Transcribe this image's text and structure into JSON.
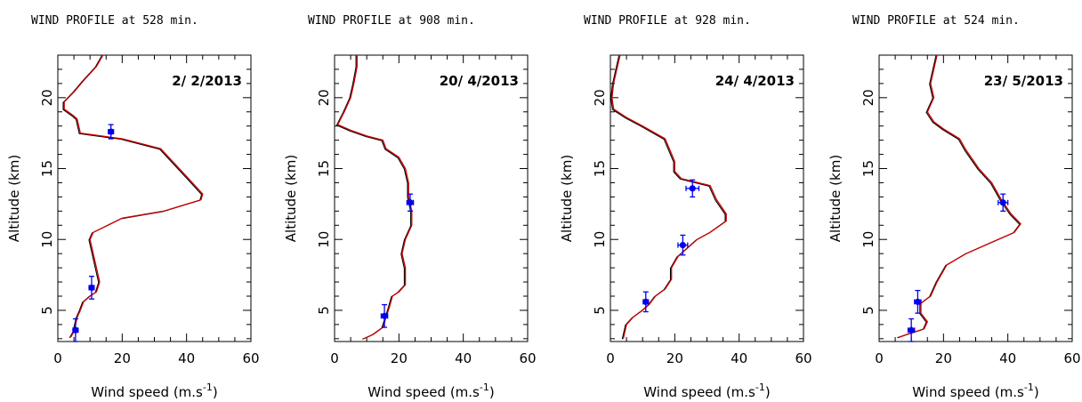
{
  "chart_data": [
    {
      "type": "line",
      "title": "WIND PROFILE at 528  min.",
      "date": "2/ 2/2013",
      "xlabel": "Wind speed (m.s",
      "xlabel_sup": "-1",
      "xlabel_close": ")",
      "ylabel": "Altitude (km)",
      "xlim": [
        0,
        60
      ],
      "ylim": [
        2.8,
        23
      ],
      "xticks": [
        "0",
        "20",
        "40",
        "60"
      ],
      "yticks": [
        "5",
        "10",
        "15",
        "20"
      ],
      "colors": {
        "model": "#cc0000",
        "profile": "#000000",
        "obs": "#0000ee"
      },
      "profile": [
        [
          4,
          3.1
        ],
        [
          5,
          3.5
        ],
        [
          5.5,
          4
        ],
        [
          6,
          4.5
        ],
        [
          7,
          5
        ],
        [
          8,
          5.6
        ],
        [
          10,
          6
        ],
        [
          12,
          6.3
        ],
        [
          13,
          7
        ],
        [
          12,
          8
        ],
        [
          11,
          9
        ],
        [
          10,
          10
        ],
        [
          11,
          10.5
        ],
        [
          20,
          11.5
        ],
        [
          33,
          12
        ],
        [
          44.5,
          12.8
        ],
        [
          45,
          13.2
        ],
        [
          41,
          14.2
        ],
        [
          32,
          16.4
        ],
        [
          20,
          17.1
        ],
        [
          7,
          17.5
        ],
        [
          6,
          18.5
        ],
        [
          5,
          18.7
        ],
        [
          2,
          19.2
        ],
        [
          2,
          19.7
        ],
        [
          5,
          20.4
        ],
        [
          8,
          21.2
        ],
        [
          12,
          22.2
        ],
        [
          14,
          23
        ]
      ],
      "obs": [
        {
          "x": 5.5,
          "y": 3.6,
          "xe": 0.8,
          "ye": 0.8
        },
        {
          "x": 10.5,
          "y": 6.6,
          "xe": 0.8,
          "ye": 0.8
        },
        {
          "x": 16.5,
          "y": 17.6,
          "xe": 0.8,
          "ye": 0.5
        }
      ]
    },
    {
      "type": "line",
      "title": "WIND PROFILE at 908  min.",
      "date": "20/ 4/2013",
      "xlabel": "Wind speed (m.s",
      "xlabel_sup": "-1",
      "xlabel_close": ")",
      "ylabel": "Altitude (km)",
      "xlim": [
        0,
        60
      ],
      "ylim": [
        2.8,
        23
      ],
      "xticks": [
        "0",
        "20",
        "40",
        "60"
      ],
      "yticks": [
        "5",
        "10",
        "15",
        "20"
      ],
      "colors": {
        "model": "#cc0000",
        "profile": "#000000",
        "obs": "#0000ee"
      },
      "profile": [
        [
          9,
          3
        ],
        [
          12,
          3.3
        ],
        [
          15,
          3.8
        ],
        [
          16,
          4.5
        ],
        [
          17,
          5.2
        ],
        [
          18,
          6
        ],
        [
          20,
          6.3
        ],
        [
          22,
          6.8
        ],
        [
          22,
          8
        ],
        [
          21,
          9
        ],
        [
          22,
          10
        ],
        [
          24,
          11
        ],
        [
          24,
          12
        ],
        [
          23,
          13
        ],
        [
          23,
          14
        ],
        [
          22,
          15
        ],
        [
          20,
          15.8
        ],
        [
          16,
          16.4
        ],
        [
          15,
          17
        ],
        [
          10,
          17.3
        ],
        [
          5,
          17.7
        ],
        [
          1,
          18.1
        ],
        [
          3,
          19
        ],
        [
          5,
          20
        ],
        [
          6,
          21
        ],
        [
          7,
          22.2
        ],
        [
          7,
          23
        ]
      ],
      "obs": [
        {
          "x": 15.5,
          "y": 4.6,
          "xe": 1.0,
          "ye": 0.8
        },
        {
          "x": 23.5,
          "y": 12.6,
          "xe": 1.0,
          "ye": 0.6
        }
      ]
    },
    {
      "type": "line",
      "title": "WIND PROFILE at 928  min.",
      "date": "24/ 4/2013",
      "xlabel": "Wind speed (m.s",
      "xlabel_sup": "-1",
      "xlabel_close": ")",
      "ylabel": "Altitude (km)",
      "xlim": [
        0,
        60
      ],
      "ylim": [
        2.8,
        23
      ],
      "xticks": [
        "0",
        "20",
        "40",
        "60"
      ],
      "yticks": [
        "5",
        "10",
        "15",
        "20"
      ],
      "colors": {
        "model": "#cc0000",
        "profile": "#000000",
        "obs": "#0000ee"
      },
      "profile": [
        [
          4,
          3
        ],
        [
          5,
          4
        ],
        [
          7,
          4.5
        ],
        [
          10,
          5
        ],
        [
          12,
          5.4
        ],
        [
          14,
          6
        ],
        [
          17,
          6.5
        ],
        [
          19,
          7.2
        ],
        [
          19,
          8
        ],
        [
          21,
          8.8
        ],
        [
          24,
          9.4
        ],
        [
          27,
          10
        ],
        [
          31,
          10.5
        ],
        [
          36,
          11.3
        ],
        [
          36,
          11.8
        ],
        [
          33,
          12.8
        ],
        [
          31,
          13.8
        ],
        [
          22,
          14.3
        ],
        [
          20,
          14.8
        ],
        [
          20,
          15.5
        ],
        [
          17,
          17.1
        ],
        [
          10,
          18
        ],
        [
          5,
          18.6
        ],
        [
          1,
          19.2
        ],
        [
          0.5,
          20
        ],
        [
          1,
          21
        ],
        [
          2,
          22
        ],
        [
          3,
          23
        ]
      ],
      "obs": [
        {
          "x": 11,
          "y": 5.6,
          "xe": 0.8,
          "ye": 0.7
        },
        {
          "x": 22.5,
          "y": 9.6,
          "xe": 1.5,
          "ye": 0.7
        },
        {
          "x": 25.5,
          "y": 13.6,
          "xe": 2.0,
          "ye": 0.6
        }
      ]
    },
    {
      "type": "line",
      "title": "WIND PROFILE at 524  min.",
      "date": "23/ 5/2013",
      "xlabel": "Wind speed (m.s",
      "xlabel_sup": "-1",
      "xlabel_close": ")",
      "ylabel": "Altitude (km)",
      "xlim": [
        0,
        60
      ],
      "ylim": [
        2.8,
        23
      ],
      "xticks": [
        "0",
        "20",
        "40",
        "60"
      ],
      "yticks": [
        "5",
        "10",
        "15",
        "20"
      ],
      "colors": {
        "model": "#cc0000",
        "profile": "#000000",
        "obs": "#0000ee"
      },
      "profile": [
        [
          6,
          3.1
        ],
        [
          10,
          3.4
        ],
        [
          14,
          3.7
        ],
        [
          15,
          4.2
        ],
        [
          13,
          4.8
        ],
        [
          13,
          5.5
        ],
        [
          16,
          6
        ],
        [
          18,
          7
        ],
        [
          21,
          8.2
        ],
        [
          27,
          9
        ],
        [
          35,
          9.8
        ],
        [
          42,
          10.5
        ],
        [
          44,
          11.1
        ],
        [
          41,
          11.8
        ],
        [
          38,
          12.8
        ],
        [
          35,
          14
        ],
        [
          31,
          15
        ],
        [
          27,
          16.3
        ],
        [
          25,
          17.1
        ],
        [
          20,
          17.8
        ],
        [
          17,
          18.3
        ],
        [
          15,
          19
        ],
        [
          17,
          20
        ],
        [
          16,
          21
        ],
        [
          17,
          22
        ],
        [
          18,
          23
        ]
      ],
      "obs": [
        {
          "x": 10,
          "y": 3.6,
          "xe": 1.0,
          "ye": 0.8
        },
        {
          "x": 12,
          "y": 5.6,
          "xe": 1.0,
          "ye": 0.8
        },
        {
          "x": 38.5,
          "y": 12.6,
          "xe": 1.5,
          "ye": 0.6
        }
      ]
    }
  ]
}
